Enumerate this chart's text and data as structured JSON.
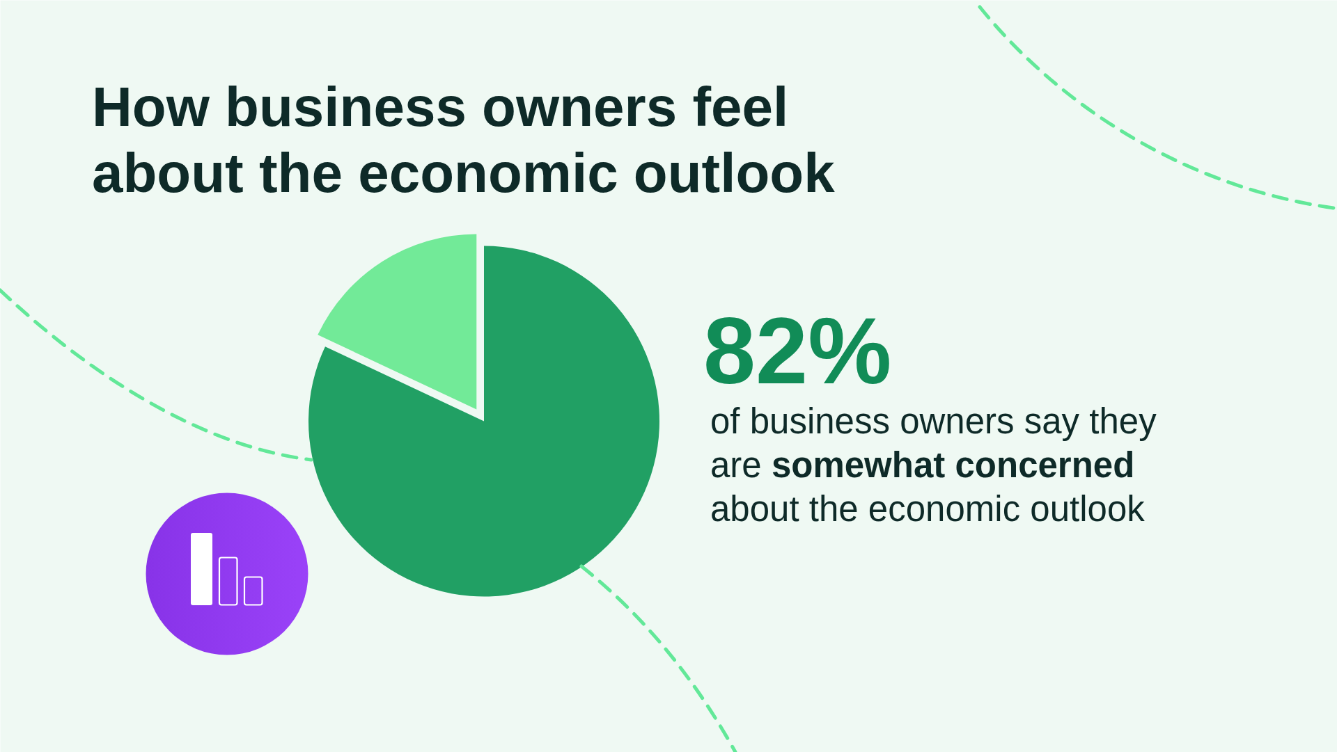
{
  "chart_data": {
    "type": "pie",
    "title": "How business owners feel about the economic outlook",
    "categories": [
      null,
      null
    ],
    "values": [
      82,
      18
    ],
    "colors": [
      "#21a064",
      "#72ea98"
    ],
    "value_labels": [
      "82%",
      null
    ],
    "annotations": [
      "of business owners say they are",
      "somewhat concerned",
      "about the economic outlook"
    ]
  }
}
